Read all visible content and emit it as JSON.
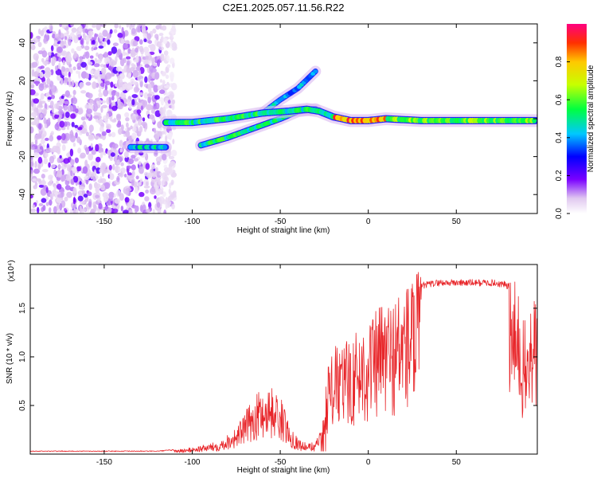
{
  "title": "C2E1.2025.057.11.56.R22",
  "chart_data": [
    {
      "type": "heatmap",
      "xlabel": "Height of straight line (km)",
      "ylabel": "Frequency (Hz)",
      "xlim": [
        -192,
        96
      ],
      "ylim": [
        -50,
        50
      ],
      "xticks": [
        -150,
        -100,
        -50,
        0,
        50
      ],
      "yticks": [
        -40,
        -20,
        0,
        20,
        40
      ],
      "colorbar": {
        "label": "Normalized spectral amplitude",
        "range": [
          0,
          1
        ],
        "ticks": [
          0.0,
          0.2,
          0.4,
          0.6,
          0.8
        ]
      },
      "tracks": [
        {
          "x": [
            -115,
            -100,
            -80,
            -60,
            -45,
            -35,
            -28,
            -20,
            -10,
            0,
            10,
            30,
            50,
            70,
            95
          ],
          "y": [
            -2,
            -2,
            0,
            3,
            4,
            5,
            4,
            1,
            -1,
            -1,
            0,
            -1,
            -1,
            -1,
            -1
          ]
        },
        {
          "x": [
            -135,
            -125,
            -115
          ],
          "y": [
            -15,
            -15,
            -15
          ]
        },
        {
          "x": [
            -95,
            -80,
            -65,
            -50,
            -40,
            -30
          ],
          "y": [
            -14,
            -10,
            -5,
            0,
            4,
            5
          ]
        },
        {
          "x": [
            -60,
            -50,
            -40,
            -30
          ],
          "y": [
            3,
            10,
            16,
            25
          ]
        }
      ]
    },
    {
      "type": "line",
      "xlabel": "Height of straight line (km)",
      "ylabel": "SNR (10 * v/v)",
      "yscale_label": "(x10⁴)",
      "xlim": [
        -192,
        96
      ],
      "ylim": [
        0,
        1.95
      ],
      "xticks": [
        -150,
        -100,
        -50,
        0,
        50
      ],
      "yticks": [
        0.5,
        1.0,
        1.5
      ],
      "envelope": {
        "x": [
          -192,
          -120,
          -105,
          -95,
          -85,
          -75,
          -68,
          -62,
          -56,
          -50,
          -45,
          -40,
          -35,
          -30,
          -26,
          -24,
          -20,
          -15,
          -10,
          -5,
          0,
          5,
          8,
          10,
          15,
          20,
          25,
          30,
          40,
          50,
          60,
          70,
          78,
          82,
          85,
          88,
          90,
          93,
          96
        ],
        "y": [
          0.03,
          0.03,
          0.05,
          0.08,
          0.12,
          0.25,
          0.45,
          0.6,
          0.65,
          0.55,
          0.3,
          0.15,
          0.1,
          0.12,
          0.25,
          0.8,
          1.0,
          1.05,
          1.1,
          1.2,
          1.3,
          1.35,
          1.5,
          1.45,
          1.5,
          1.6,
          1.7,
          1.75,
          1.78,
          1.78,
          1.78,
          1.78,
          1.76,
          1.7,
          1.55,
          1.3,
          1.2,
          1.6,
          1.45
        ]
      }
    }
  ]
}
